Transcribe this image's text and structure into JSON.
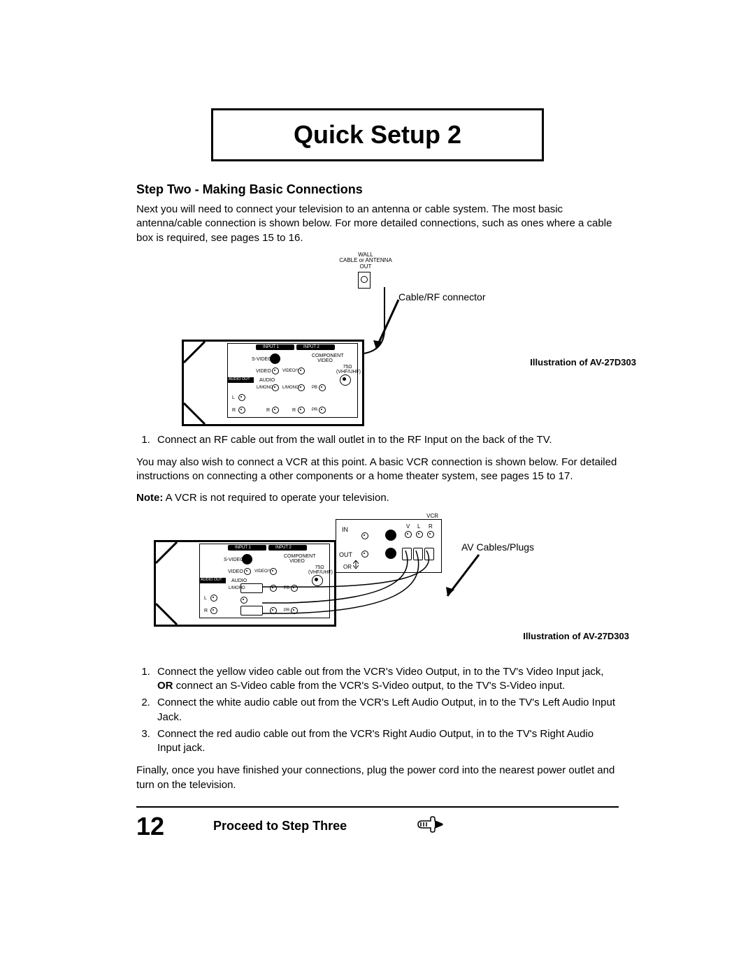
{
  "title": "Quick Setup 2",
  "step_heading": "Step Two - Making Basic Connections",
  "intro": "Next you will need to connect your television to an antenna or cable system. The most basic antenna/cable connection is shown below. For more detailed connections, such as ones where a cable box is required, see pages 15 to 16.",
  "diagram1": {
    "wall_label": "WALL\nCABLE or ANTENNA\nOUT",
    "cable_label": "Cable/RF connector",
    "illustration_caption": "Illustration of AV-27D303",
    "panel": {
      "input1": "INPUT 1",
      "input2": "INPUT 2",
      "svideo": "S-VIDEO",
      "component": "COMPONENT\nVIDEO",
      "video": "VIDEO",
      "videoy": "VIDEO/Y",
      "ohm": "75Ω\n(VHF/UHF)",
      "audio_out": "AUDIO OUT",
      "audio": "AUDIO",
      "lmono": "L/MONO",
      "l": "L",
      "r": "R",
      "pb": "PB",
      "pr": "PR"
    }
  },
  "step1_list": [
    "Connect an RF cable out from the wall outlet in to the RF Input on the back of the TV."
  ],
  "vcr_para": "You may also wish to connect a VCR at this point. A basic VCR connection is shown below. For detailed instructions on connecting a other components or a home theater system, see pages 15 to 17.",
  "note_prefix": "Note:",
  "note_body": " A VCR is not required to operate your television.",
  "diagram2": {
    "vcr": "VCR",
    "in": "IN",
    "out": "OUT",
    "or": "OR",
    "v": "V",
    "l": "L",
    "r": "R",
    "av_label": "AV Cables/Plugs",
    "illustration_caption": "Illustration of AV-27D303"
  },
  "step2_list": [
    "Connect the yellow video cable out from the VCR's Video Output, in to the TV's Video Input jack, OR connect an S-Video cable from the VCR's S-Video output, to the TV's S-Video input.",
    "Connect the white audio cable out from the VCR's Left Audio Output, in to the TV's Left Audio Input Jack.",
    "Connect the red audio cable out from the VCR's Right Audio Output, in to the TV's Right Audio Input jack."
  ],
  "final_para": "Finally, once you have finished your connections, plug the power cord into the nearest power outlet and turn on the television.",
  "page_number": "12",
  "proceed": "Proceed to Step Three"
}
